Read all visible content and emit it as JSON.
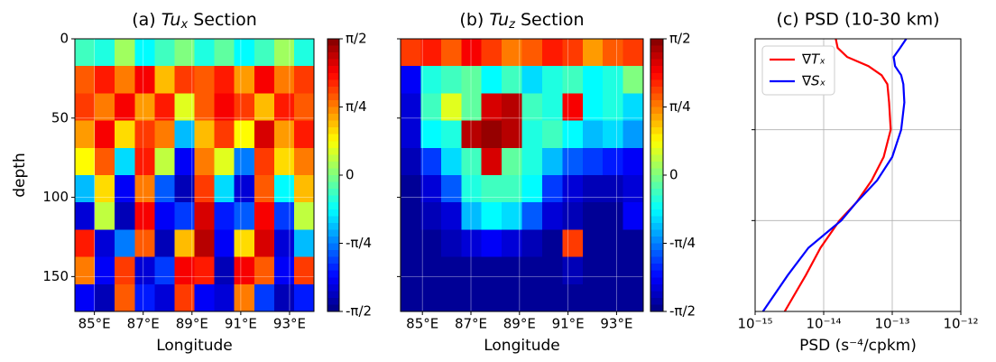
{
  "chart_data": [
    {
      "type": "heatmap",
      "title": {
        "label": "(a) ",
        "symbol": "Tu",
        "sub": "x",
        "rest": " Section"
      },
      "xlabel": "Longitude",
      "ylabel": "depth",
      "xlim": [
        84.2,
        94.0
      ],
      "xticks": [
        {
          "value": 85,
          "label": "85°E"
        },
        {
          "value": 87,
          "label": "87°E"
        },
        {
          "value": 89,
          "label": "89°E"
        },
        {
          "value": 91,
          "label": "91°E"
        },
        {
          "value": 93,
          "label": "93°E"
        }
      ],
      "ylim": [
        172,
        0
      ],
      "yticks": [
        0,
        50,
        100,
        150
      ],
      "grid": true,
      "colormap": "jet",
      "clim": [
        -1.5708,
        1.5708
      ],
      "cbar_ticks": [
        {
          "value": 1.5708,
          "label": "π/2"
        },
        {
          "value": 0.7854,
          "label": "π/4"
        },
        0,
        {
          "value": -0.7854,
          "label": "-π/4"
        },
        {
          "value": -1.5708,
          "label": "-π/2"
        }
      ],
      "z": [
        [
          -0.2,
          -0.3,
          0.1,
          -0.4,
          -0.2,
          0.0,
          -0.3,
          -0.1,
          -0.4,
          -0.2,
          0.1,
          -0.3
        ],
        [
          0.9,
          1.1,
          0.8,
          1.2,
          0.6,
          1.0,
          0.9,
          1.1,
          0.7,
          1.2,
          0.8,
          1.0
        ],
        [
          1.0,
          0.8,
          1.2,
          0.7,
          1.1,
          0.3,
          0.9,
          1.2,
          1.0,
          0.6,
          1.1,
          0.9
        ],
        [
          0.7,
          1.2,
          0.5,
          1.0,
          0.8,
          -0.6,
          0.6,
          1.0,
          0.4,
          1.3,
          0.7,
          1.1
        ],
        [
          0.4,
          0.9,
          -0.5,
          1.1,
          0.2,
          -1.2,
          0.8,
          0.3,
          -0.8,
          1.0,
          0.5,
          0.8
        ],
        [
          -0.6,
          0.5,
          -1.2,
          0.8,
          -0.9,
          -1.4,
          1.0,
          -0.5,
          -1.3,
          0.9,
          -0.4,
          0.6
        ],
        [
          -1.3,
          0.2,
          -1.4,
          1.2,
          -1.2,
          -1.0,
          1.3,
          -1.1,
          -0.9,
          1.2,
          -1.0,
          0.2
        ],
        [
          1.1,
          -1.3,
          -0.8,
          0.9,
          -1.4,
          0.6,
          1.4,
          -1.2,
          0.5,
          1.3,
          -1.3,
          -0.6
        ],
        [
          0.8,
          -1.2,
          1.0,
          -1.3,
          -1.0,
          1.2,
          1.1,
          -1.4,
          1.2,
          0.9,
          -1.2,
          1.0
        ],
        [
          -1.2,
          -1.4,
          0.9,
          -1.1,
          -1.3,
          1.0,
          -1.2,
          -1.3,
          0.8,
          -1.0,
          -1.4,
          -1.1
        ]
      ]
    },
    {
      "type": "heatmap",
      "title": {
        "label": "(b) ",
        "symbol": "Tu",
        "sub": "z",
        "rest": " Section"
      },
      "xlabel": "Longitude",
      "xlim": [
        84.1,
        94.1
      ],
      "xticks": [
        {
          "value": 85,
          "label": "85°E"
        },
        {
          "value": 87,
          "label": "87°E"
        },
        {
          "value": 89,
          "label": "89°E"
        },
        {
          "value": 91,
          "label": "91°E"
        },
        {
          "value": 93,
          "label": "93°E"
        }
      ],
      "ylim": [
        172,
        0
      ],
      "yticks": [
        0,
        50,
        100,
        150
      ],
      "ytick_labels": false,
      "grid": true,
      "colormap": "jet",
      "clim": [
        -1.5708,
        1.5708
      ],
      "cbar_ticks": [
        {
          "value": 1.5708,
          "label": "π/2"
        },
        {
          "value": 0.7854,
          "label": "π/4"
        },
        0,
        {
          "value": -0.7854,
          "label": "-π/4"
        },
        {
          "value": -1.5708,
          "label": "-π/2"
        }
      ],
      "z": [
        [
          1.0,
          1.1,
          0.9,
          1.2,
          1.0,
          0.8,
          0.9,
          1.1,
          1.0,
          0.7,
          0.9,
          1.0
        ],
        [
          -1.2,
          -0.3,
          -0.2,
          -0.1,
          -0.4,
          -0.2,
          -0.5,
          -0.3,
          -0.2,
          -0.4,
          -0.3,
          0.0
        ],
        [
          -1.3,
          -0.2,
          0.3,
          -0.1,
          1.3,
          1.4,
          -0.2,
          -0.3,
          1.2,
          -0.4,
          -0.3,
          -0.5
        ],
        [
          -1.3,
          -0.4,
          -0.3,
          1.4,
          1.5,
          1.4,
          -0.3,
          -0.2,
          -0.4,
          -0.6,
          -0.5,
          -0.7
        ],
        [
          -1.4,
          -1.0,
          -0.5,
          -0.2,
          1.3,
          -0.1,
          -0.3,
          -0.6,
          -0.9,
          -1.0,
          -1.1,
          -1.2
        ],
        [
          -1.5,
          -1.3,
          -0.9,
          -0.3,
          -0.2,
          -0.2,
          -0.4,
          -1.0,
          -1.3,
          -1.4,
          -1.4,
          -1.3
        ],
        [
          -1.5,
          -1.4,
          -1.3,
          -0.6,
          -0.4,
          -0.5,
          -0.9,
          -1.3,
          -1.4,
          -1.5,
          -1.5,
          -1.2
        ],
        [
          -1.5,
          -1.5,
          -1.4,
          -1.3,
          -1.2,
          -1.3,
          -1.4,
          -1.5,
          1.0,
          -1.5,
          -1.5,
          -1.5
        ],
        [
          -1.5,
          -1.5,
          -1.5,
          -1.5,
          -1.5,
          -1.5,
          -1.5,
          -1.5,
          -1.4,
          -1.5,
          -1.5,
          -1.5
        ],
        [
          -1.5,
          -1.5,
          -1.5,
          -1.5,
          -1.5,
          -1.5,
          -1.5,
          -1.5,
          -1.5,
          -1.5,
          -1.5,
          -1.5
        ]
      ]
    },
    {
      "type": "line",
      "title": "(c) PSD (10-30 km)",
      "xlabel": "PSD (s⁻⁴/cpkm)",
      "xscale": "log",
      "xlim": [
        1e-15,
        1e-12
      ],
      "xticks": [
        {
          "value": 1e-15,
          "label": "10⁻¹⁵"
        },
        {
          "value": 1e-14,
          "label": "10⁻¹⁴"
        },
        {
          "value": 1e-13,
          "label": "10⁻¹³"
        },
        {
          "value": 1e-12,
          "label": "10⁻¹²"
        }
      ],
      "ylim": [
        150,
        0
      ],
      "yticks": [
        50,
        100
      ],
      "ytick_labels": false,
      "grid": true,
      "legend": "upper left",
      "y": [
        0,
        5,
        10,
        15,
        20,
        25,
        35,
        50,
        65,
        78,
        90,
        100,
        115,
        130,
        150
      ],
      "series": [
        {
          "name": "∇Tₓ",
          "color": "#ff0000",
          "values": [
            1.5e-14,
            1.6e-14,
            2.2e-14,
            4.5e-14,
            7e-14,
            8.5e-14,
            9e-14,
            9.5e-14,
            7.5e-14,
            5e-14,
            3e-14,
            1.7e-14,
            9e-15,
            5.5e-15,
            2.7e-15
          ]
        },
        {
          "name": "∇Sₓ",
          "color": "#0000ff",
          "values": [
            1.6e-13,
            1.3e-13,
            1.05e-13,
            1.1e-13,
            1.35e-13,
            1.45e-13,
            1.5e-13,
            1.35e-13,
            1e-13,
            6e-14,
            3e-14,
            1.8e-14,
            6e-15,
            3e-15,
            1.3e-15
          ]
        }
      ]
    }
  ]
}
